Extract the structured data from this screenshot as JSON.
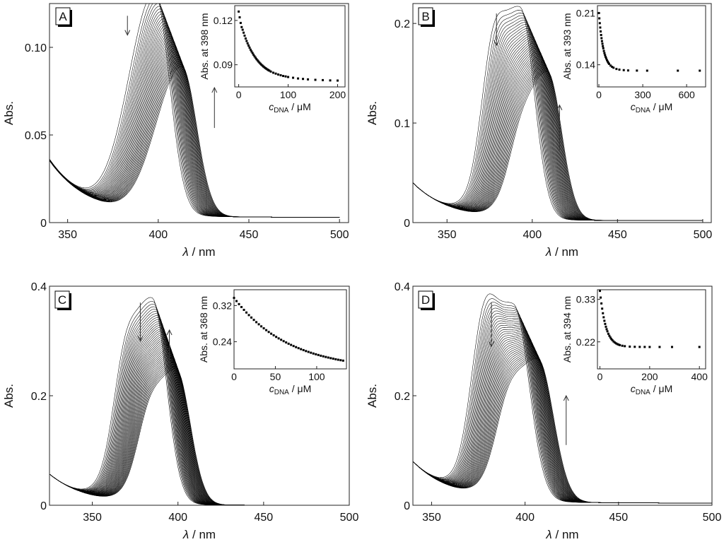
{
  "chart_data": [
    {
      "type": "line",
      "panel": "A",
      "xlabel_symbol": "λ",
      "xlabel_unit": " / nm",
      "ylabel": "Abs.",
      "xlim": [
        340,
        505
      ],
      "ylim": [
        0,
        0.125
      ],
      "xticks": [
        350,
        400,
        450,
        500
      ],
      "yticks": [
        0,
        0.05,
        0.1
      ],
      "ytick_labels": [
        "0",
        "0.05",
        "0.10"
      ],
      "series_count": 34,
      "start_curve": {
        "peak_nm": 398,
        "peak_abs": 0.126,
        "shoulder": 0,
        "min_abs": 0.035
      },
      "end_curve": {
        "peak_nm": 413,
        "peak_abs": 0.085,
        "shoulder": 0,
        "min_abs": 0.034
      },
      "isosbestic_nm": 410,
      "baseline_abs": 0.003,
      "arrows": [
        {
          "x": 383,
          "y_from": 0.118,
          "y_to": 0.107,
          "dir": "down"
        },
        {
          "x": 431,
          "y_from": 0.054,
          "y_to": 0.077,
          "dir": "up"
        }
      ],
      "inset": {
        "ylabel": "Abs. at 398 nm",
        "xlabel_main": "c",
        "xlabel_sub": "DNA",
        "xlabel_unit": " / μM",
        "xlim": [
          -8,
          215
        ],
        "ylim": [
          0.075,
          0.13
        ],
        "xticks": [
          0,
          100,
          200
        ],
        "yticks": [
          0.09,
          0.12
        ],
        "ytick_labels": [
          "0.09",
          "0.12"
        ],
        "x": [
          0,
          2,
          4,
          6,
          8,
          10,
          12,
          14,
          16,
          18,
          20,
          22,
          24,
          26,
          28,
          30,
          32,
          34,
          36,
          38,
          40,
          42,
          44,
          46,
          48,
          50,
          52,
          54,
          56,
          58,
          60,
          62,
          65,
          70,
          75,
          80,
          85,
          90,
          95,
          100,
          110,
          120,
          130,
          140,
          155,
          170,
          185,
          200
        ],
        "y": [
          0.126,
          0.1221,
          0.1183,
          0.1155,
          0.1137,
          0.1117,
          0.1097,
          0.1078,
          0.1061,
          0.1045,
          0.103,
          0.1016,
          0.1002,
          0.099,
          0.0979,
          0.0968,
          0.0957,
          0.0948,
          0.0938,
          0.093,
          0.0922,
          0.0914,
          0.0907,
          0.09,
          0.0894,
          0.0888,
          0.0883,
          0.0877,
          0.0873,
          0.0868,
          0.0864,
          0.086,
          0.0854,
          0.0846,
          0.084,
          0.0834,
          0.0829,
          0.0824,
          0.0821,
          0.0817,
          0.0812,
          0.0807,
          0.0804,
          0.0801,
          0.0798,
          0.0796,
          0.0794,
          0.0793
        ]
      }
    },
    {
      "type": "line",
      "panel": "B",
      "xlabel_symbol": "λ",
      "xlabel_unit": " / nm",
      "ylabel": "Abs.",
      "xlim": [
        330,
        505
      ],
      "ylim": [
        0,
        0.22
      ],
      "xticks": [
        350,
        400,
        450,
        500
      ],
      "yticks": [
        0,
        0.1,
        0.2
      ],
      "ytick_labels": [
        "0",
        "0.1",
        "0.2"
      ],
      "series_count": 36,
      "start_curve": {
        "peak_nm": 393,
        "peak_abs": 0.21,
        "shoulder": 0.08,
        "min_abs": 0.04
      },
      "end_curve": {
        "peak_nm": 409,
        "peak_abs": 0.148,
        "shoulder": 0.025,
        "min_abs": 0.04
      },
      "isosbestic_nm": 401,
      "baseline_abs": 0.002,
      "arrows": [
        {
          "x": 379,
          "y_from": 0.21,
          "y_to": 0.178,
          "dir": "down"
        },
        {
          "x": 416,
          "y_from": 0.073,
          "y_to": 0.118,
          "dir": "up"
        }
      ],
      "inset": {
        "ylabel": "Abs. at 393 nm",
        "xlabel_main": "c",
        "xlabel_sub": "DNA",
        "xlabel_unit": " / μM",
        "xlim": [
          -10,
          730
        ],
        "ylim": [
          0.11,
          0.22
        ],
        "xticks": [
          0,
          300,
          600
        ],
        "yticks": [
          0.14,
          0.21
        ],
        "ytick_labels": [
          "0.14",
          "0.21"
        ],
        "x": [
          0,
          3,
          6,
          9,
          12,
          15,
          18,
          21,
          24,
          27,
          30,
          34,
          38,
          42,
          46,
          50,
          55,
          60,
          65,
          70,
          80,
          90,
          100,
          120,
          140,
          170,
          200,
          260,
          330,
          540,
          690
        ],
        "y": [
          0.21,
          0.2028,
          0.1963,
          0.1904,
          0.1851,
          0.1803,
          0.176,
          0.172,
          0.1685,
          0.1652,
          0.1623,
          0.1587,
          0.1557,
          0.153,
          0.1506,
          0.1485,
          0.1462,
          0.1443,
          0.1426,
          0.1412,
          0.1389,
          0.1372,
          0.136,
          0.1343,
          0.1334,
          0.1327,
          0.1323,
          0.1321,
          0.132,
          0.132,
          0.132
        ]
      }
    },
    {
      "type": "line",
      "panel": "C",
      "xlabel_symbol": "λ",
      "xlabel_unit": " / nm",
      "ylabel": "Abs.",
      "xlim": [
        325,
        500
      ],
      "ylim": [
        0,
        0.4
      ],
      "xticks": [
        350,
        400,
        450,
        500
      ],
      "yticks": [
        0,
        0.2,
        0.4
      ],
      "ytick_labels": [
        "0",
        "0.2",
        "0.4"
      ],
      "series_count": 40,
      "start_curve": {
        "peak_nm": 385,
        "peak_abs": 0.372,
        "shoulder": 0.105,
        "min_abs": 0.06
      },
      "end_curve": {
        "peak_nm": 399,
        "peak_abs": 0.245,
        "shoulder": 0.06,
        "min_abs": 0.06
      },
      "isosbestic_nm": 394,
      "baseline_abs": 0.0,
      "arrows": [
        {
          "x": 378,
          "y_from": 0.37,
          "y_to": 0.3,
          "dir": "down"
        },
        {
          "x": 395,
          "y_from": 0.255,
          "y_to": 0.32,
          "dir": "up"
        }
      ],
      "inset": {
        "ylabel": "Abs. at 368 nm",
        "xlabel_main": "c",
        "xlabel_sub": "DNA",
        "xlabel_unit": " / μM",
        "xlim": [
          0,
          136
        ],
        "ylim": [
          0.18,
          0.355
        ],
        "xticks": [
          0,
          50,
          100
        ],
        "yticks": [
          0.24,
          0.32
        ],
        "ytick_labels": [
          "0.24",
          "0.32"
        ],
        "x": [
          0,
          3,
          6,
          9,
          12,
          15,
          18,
          21,
          24,
          27,
          30,
          33,
          36,
          39,
          42,
          45,
          48,
          51,
          54,
          57,
          60,
          63,
          66,
          69,
          72,
          75,
          78,
          81,
          84,
          87,
          90,
          93,
          96,
          99,
          102,
          105,
          108,
          111,
          114,
          117,
          120,
          123,
          126,
          129,
          132
        ],
        "y": [
          0.337,
          0.3299,
          0.3232,
          0.3167,
          0.3105,
          0.3046,
          0.2989,
          0.2935,
          0.2883,
          0.2833,
          0.2786,
          0.274,
          0.2697,
          0.2656,
          0.2616,
          0.2578,
          0.2542,
          0.2507,
          0.2474,
          0.2443,
          0.2413,
          0.2384,
          0.2356,
          0.233,
          0.2305,
          0.2281,
          0.2258,
          0.2236,
          0.2215,
          0.2194,
          0.2175,
          0.2157,
          0.2139,
          0.2123,
          0.2107,
          0.2091,
          0.2077,
          0.2063,
          0.205,
          0.2037,
          0.2025,
          0.2013,
          0.2002,
          0.1992,
          0.1982
        ]
      }
    },
    {
      "type": "line",
      "panel": "D",
      "xlabel_symbol": "λ",
      "xlabel_unit": " / nm",
      "ylabel": "Abs.",
      "xlim": [
        340,
        500
      ],
      "ylim": [
        0,
        0.4
      ],
      "xticks": [
        350,
        400,
        450,
        500
      ],
      "yticks": [
        0,
        0.2,
        0.4
      ],
      "ytick_labels": [
        "0",
        "0.2",
        "0.4"
      ],
      "series_count": 36,
      "start_curve": {
        "peak_nm": 394,
        "peak_abs": 0.352,
        "shoulder": 0.17,
        "min_abs": 0.08
      },
      "end_curve": {
        "peak_nm": 407,
        "peak_abs": 0.258,
        "shoulder": 0.07,
        "min_abs": 0.08
      },
      "isosbestic_nm": 402,
      "baseline_abs": 0.004,
      "arrows": [
        {
          "x": 382,
          "y_from": 0.37,
          "y_to": 0.29,
          "dir": "down"
        },
        {
          "x": 422,
          "y_from": 0.11,
          "y_to": 0.2,
          "dir": "up"
        }
      ],
      "inset": {
        "ylabel": "Abs. at 394 nm",
        "xlabel_main": "c",
        "xlabel_sub": "DNA",
        "xlabel_unit": " / μM",
        "xlim": [
          -10,
          425
        ],
        "ylim": [
          0.15,
          0.355
        ],
        "xticks": [
          0,
          200,
          400
        ],
        "yticks": [
          0.22,
          0.33
        ],
        "ytick_labels": [
          "0.22",
          "0.33"
        ],
        "x": [
          0,
          3,
          6,
          9,
          12,
          15,
          18,
          21,
          24,
          27,
          30,
          34,
          38,
          42,
          46,
          50,
          55,
          60,
          65,
          70,
          75,
          80,
          90,
          100,
          120,
          140,
          160,
          180,
          200,
          240,
          290,
          400
        ],
        "y": [
          0.352,
          0.3347,
          0.3195,
          0.306,
          0.2941,
          0.2837,
          0.2745,
          0.2664,
          0.2592,
          0.2528,
          0.2473,
          0.2409,
          0.2357,
          0.2312,
          0.2274,
          0.2242,
          0.2209,
          0.2182,
          0.216,
          0.2142,
          0.2128,
          0.2116,
          0.2099,
          0.2088,
          0.2076,
          0.2071,
          0.2069,
          0.2068,
          0.2067,
          0.2067,
          0.2067,
          0.2067
        ]
      }
    }
  ],
  "panels_layout": [
    {
      "label": "A"
    },
    {
      "label": "B"
    },
    {
      "label": "C"
    },
    {
      "label": "D"
    }
  ]
}
